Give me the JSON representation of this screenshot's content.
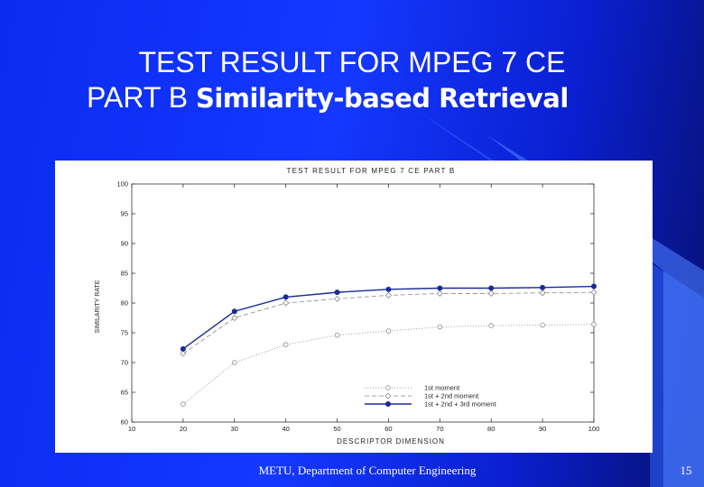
{
  "slide": {
    "title_line1": "TEST RESULT FOR MPEG 7 CE",
    "title_line2_prefix": "PART B",
    "title_line2_bold": "Similarity-based Retrieval",
    "footer": "METU, Department of Computer Engineering",
    "page_number": "15",
    "colors": {
      "background": "#1438ff",
      "accent_dark": "#06106e",
      "text": "#ffffff"
    }
  },
  "chart_data": {
    "type": "line",
    "title": "TEST RESULT FOR MPEG 7 CE PART B",
    "xlabel": "DESCRIPTOR DIMENSION",
    "ylabel": "SIMILARITY RATE",
    "xlim": [
      10,
      100
    ],
    "ylim": [
      60,
      100
    ],
    "x_ticks": [
      "10",
      "20",
      "30",
      "40",
      "50",
      "60",
      "70",
      "80",
      "90",
      "100"
    ],
    "y_ticks": [
      "60",
      "65",
      "70",
      "75",
      "80",
      "85",
      "90",
      "95",
      "100"
    ],
    "legend_position": "bottom-right",
    "grid": false,
    "x": [
      20,
      30,
      40,
      50,
      60,
      70,
      80,
      90,
      100
    ],
    "series": [
      {
        "name": "1st moment",
        "values": [
          63.0,
          70.0,
          73.0,
          74.6,
          75.3,
          76.0,
          76.2,
          76.3,
          76.4
        ],
        "color": "#888888",
        "marker": "open-circle",
        "dash": "1,2"
      },
      {
        "name": "1st + 2nd moment",
        "values": [
          71.5,
          77.5,
          80.0,
          80.7,
          81.3,
          81.6,
          81.6,
          81.7,
          81.8
        ],
        "color": "#888888",
        "marker": "open-diamond",
        "dash": "5,3"
      },
      {
        "name": "1st + 2nd + 3rd moment",
        "values": [
          72.3,
          78.6,
          81.0,
          81.8,
          82.3,
          82.5,
          82.5,
          82.6,
          82.8
        ],
        "color": "#1a2a9a",
        "marker": "filled-circle",
        "dash": ""
      }
    ]
  }
}
